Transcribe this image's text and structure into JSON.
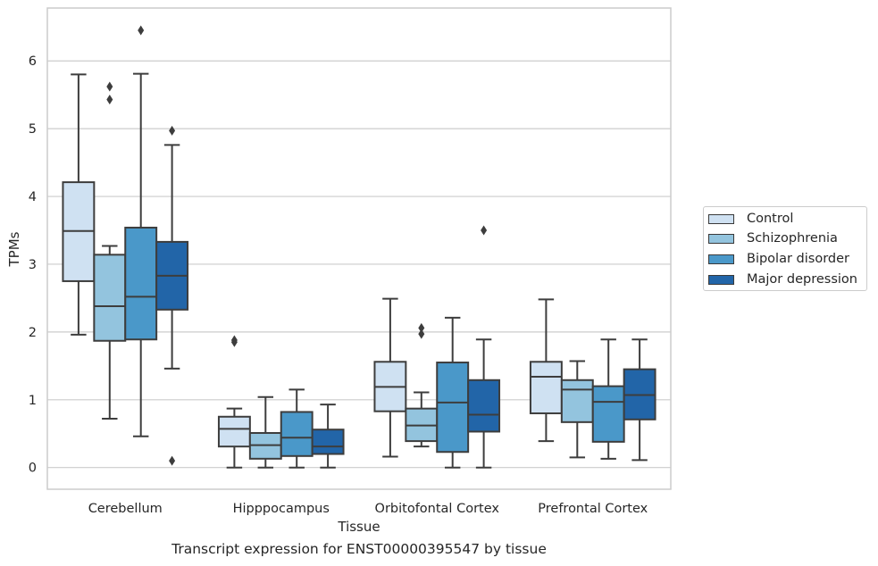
{
  "caption": "Transcript expression for ENST00000395547 by tissue",
  "chart_data": {
    "type": "box",
    "title": "",
    "xlabel": "Tissue",
    "ylabel": "TPMs",
    "ylim": [
      -0.32,
      6.78
    ],
    "yticks": [
      "0",
      "1",
      "2",
      "3",
      "4",
      "5",
      "6"
    ],
    "categories": [
      "Cerebellum",
      "Hipppocampus",
      "Orbitofontal Cortex",
      "Prefrontal Cortex"
    ],
    "grid": "horizontal",
    "legend_position": "right",
    "series": [
      {
        "name": "Control",
        "color": "#cfe1f2",
        "boxes": [
          {
            "min": 1.96,
            "q1": 2.75,
            "median": 3.49,
            "q3": 4.21,
            "max": 5.8,
            "outliers": []
          },
          {
            "min": 0.0,
            "q1": 0.31,
            "median": 0.57,
            "q3": 0.75,
            "max": 0.87,
            "outliers": [
              1.85,
              1.88
            ]
          },
          {
            "min": 0.16,
            "q1": 0.83,
            "median": 1.19,
            "q3": 1.56,
            "max": 2.49,
            "outliers": []
          },
          {
            "min": 0.39,
            "q1": 0.8,
            "median": 1.34,
            "q3": 1.56,
            "max": 2.48,
            "outliers": []
          }
        ]
      },
      {
        "name": "Schizophrenia",
        "color": "#93c4de",
        "boxes": [
          {
            "min": 0.72,
            "q1": 1.87,
            "median": 2.38,
            "q3": 3.14,
            "max": 3.27,
            "outliers": [
              5.43,
              5.62
            ]
          },
          {
            "min": 0.0,
            "q1": 0.13,
            "median": 0.33,
            "q3": 0.51,
            "max": 1.04,
            "outliers": []
          },
          {
            "min": 0.31,
            "q1": 0.39,
            "median": 0.62,
            "q3": 0.87,
            "max": 1.11,
            "outliers": [
              1.97,
              2.06
            ]
          },
          {
            "min": 0.15,
            "q1": 0.67,
            "median": 1.15,
            "q3": 1.29,
            "max": 1.57,
            "outliers": []
          }
        ]
      },
      {
        "name": "Bipolar disorder",
        "color": "#4a98c9",
        "boxes": [
          {
            "min": 0.46,
            "q1": 1.89,
            "median": 2.52,
            "q3": 3.54,
            "max": 5.81,
            "outliers": [
              6.45
            ]
          },
          {
            "min": 0.0,
            "q1": 0.17,
            "median": 0.44,
            "q3": 0.82,
            "max": 1.15,
            "outliers": []
          },
          {
            "min": 0.0,
            "q1": 0.23,
            "median": 0.96,
            "q3": 1.55,
            "max": 2.21,
            "outliers": []
          },
          {
            "min": 0.13,
            "q1": 0.38,
            "median": 0.97,
            "q3": 1.2,
            "max": 1.89,
            "outliers": []
          }
        ]
      },
      {
        "name": "Major depression",
        "color": "#2265a8",
        "boxes": [
          {
            "min": 1.46,
            "q1": 2.33,
            "median": 2.83,
            "q3": 3.33,
            "max": 4.76,
            "outliers": [
              4.97,
              0.1
            ]
          },
          {
            "min": 0.0,
            "q1": 0.2,
            "median": 0.31,
            "q3": 0.56,
            "max": 0.93,
            "outliers": []
          },
          {
            "min": 0.0,
            "q1": 0.53,
            "median": 0.78,
            "q3": 1.29,
            "max": 1.89,
            "outliers": [
              3.5
            ]
          },
          {
            "min": 0.11,
            "q1": 0.71,
            "median": 1.07,
            "q3": 1.45,
            "max": 1.89,
            "outliers": []
          }
        ]
      }
    ]
  }
}
